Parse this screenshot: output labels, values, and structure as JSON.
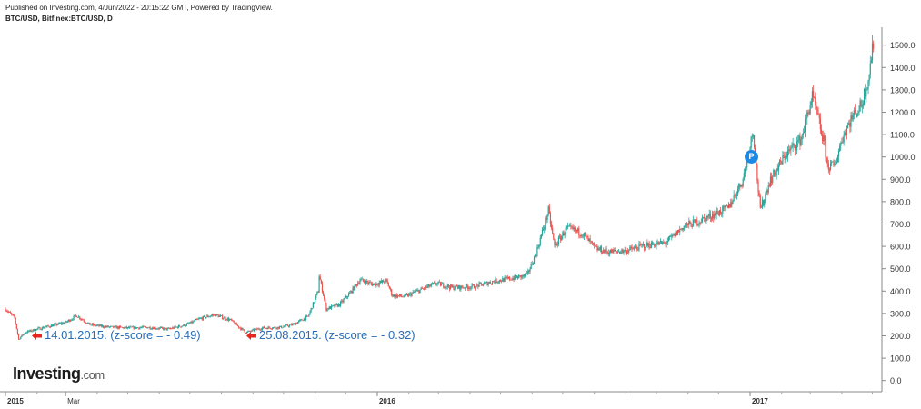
{
  "header": {
    "published": "Published on Investing.com, 4/Jun/2022 - 20:15:22 GMT, Powered by TradingView.",
    "symbol": "BTC/USD, Bitfinex:BTC/USD, D"
  },
  "brand": {
    "name": "Investing",
    "suffix": ".com"
  },
  "marker": {
    "label": "P",
    "color": "#1e88e5"
  },
  "annotations": [
    {
      "text": "14.01.2015. (z-score = - 0.49)",
      "color": "#e8251f"
    },
    {
      "text": "25.08.2015. (z-score = - 0.32)",
      "color": "#e8251f"
    }
  ],
  "colors": {
    "up": "#26a69a",
    "down": "#ef5350",
    "grid": "#e6e6e6",
    "axis": "#888888"
  },
  "chart_data": {
    "type": "candlestick",
    "title": "",
    "xlabel": "",
    "ylabel": "",
    "ylim": [
      -50,
      1580
    ],
    "yticks": [
      0,
      100,
      200,
      300,
      400,
      500,
      600,
      700,
      800,
      900,
      1000,
      1100,
      1200,
      1300,
      1400,
      1500
    ],
    "ytick_labels": [
      "0.0",
      "100.0",
      "200.0",
      "300.0",
      "400.0",
      "500.0",
      "600.0",
      "700.0",
      "800.0",
      "900.0",
      "1000.0",
      "1100.0",
      "1200.0",
      "1300.0",
      "1400.0",
      "1500.0"
    ],
    "xlim": [
      "2015-01-01",
      "2017-05-05"
    ],
    "xticks": [
      {
        "date": "2015-01-01",
        "label": "2015"
      },
      {
        "date": "2015-03-01",
        "label": "Mar"
      },
      {
        "date": "2016-01-01",
        "label": "2016"
      },
      {
        "date": "2017-01-01",
        "label": "2017"
      }
    ],
    "grid": false,
    "series": [
      {
        "values": [
          [
            "2015-01-01",
            320
          ],
          [
            "2015-01-10",
            280
          ],
          [
            "2015-01-14",
            185
          ],
          [
            "2015-01-20",
            215
          ],
          [
            "2015-02-01",
            230
          ],
          [
            "2015-02-15",
            245
          ],
          [
            "2015-03-01",
            260
          ],
          [
            "2015-03-12",
            290
          ],
          [
            "2015-03-25",
            250
          ],
          [
            "2015-04-10",
            240
          ],
          [
            "2015-05-01",
            235
          ],
          [
            "2015-05-20",
            238
          ],
          [
            "2015-06-10",
            230
          ],
          [
            "2015-06-28",
            250
          ],
          [
            "2015-07-10",
            275
          ],
          [
            "2015-07-25",
            295
          ],
          [
            "2015-08-10",
            270
          ],
          [
            "2015-08-18",
            240
          ],
          [
            "2015-08-25",
            215
          ],
          [
            "2015-09-10",
            235
          ],
          [
            "2015-09-28",
            238
          ],
          [
            "2015-10-10",
            250
          ],
          [
            "2015-10-25",
            285
          ],
          [
            "2015-11-04",
            400
          ],
          [
            "2015-11-05",
            470
          ],
          [
            "2015-11-12",
            320
          ],
          [
            "2015-11-25",
            340
          ],
          [
            "2015-12-05",
            390
          ],
          [
            "2015-12-15",
            450
          ],
          [
            "2015-12-28",
            430
          ],
          [
            "2016-01-10",
            445
          ],
          [
            "2016-01-16",
            380
          ],
          [
            "2016-01-28",
            375
          ],
          [
            "2016-02-15",
            410
          ],
          [
            "2016-02-28",
            435
          ],
          [
            "2016-03-15",
            415
          ],
          [
            "2016-04-05",
            420
          ],
          [
            "2016-04-25",
            445
          ],
          [
            "2016-05-10",
            455
          ],
          [
            "2016-05-27",
            470
          ],
          [
            "2016-06-05",
            570
          ],
          [
            "2016-06-12",
            680
          ],
          [
            "2016-06-17",
            760
          ],
          [
            "2016-06-23",
            600
          ],
          [
            "2016-07-05",
            680
          ],
          [
            "2016-07-20",
            660
          ],
          [
            "2016-08-02",
            590
          ],
          [
            "2016-08-15",
            575
          ],
          [
            "2016-09-01",
            580
          ],
          [
            "2016-09-20",
            605
          ],
          [
            "2016-10-10",
            615
          ],
          [
            "2016-10-28",
            690
          ],
          [
            "2016-11-10",
            710
          ],
          [
            "2016-11-25",
            740
          ],
          [
            "2016-12-10",
            770
          ],
          [
            "2016-12-25",
            900
          ],
          [
            "2017-01-04",
            1120
          ],
          [
            "2017-01-08",
            900
          ],
          [
            "2017-01-11",
            760
          ],
          [
            "2017-01-20",
            890
          ],
          [
            "2017-02-05",
            1010
          ],
          [
            "2017-02-20",
            1080
          ],
          [
            "2017-03-03",
            1270
          ],
          [
            "2017-03-10",
            1150
          ],
          [
            "2017-03-15",
            1050
          ],
          [
            "2017-03-18",
            960
          ],
          [
            "2017-03-25",
            960
          ],
          [
            "2017-04-01",
            1080
          ],
          [
            "2017-04-10",
            1170
          ],
          [
            "2017-04-20",
            1230
          ],
          [
            "2017-04-27",
            1350
          ],
          [
            "2017-05-03",
            1540
          ]
        ]
      }
    ]
  }
}
